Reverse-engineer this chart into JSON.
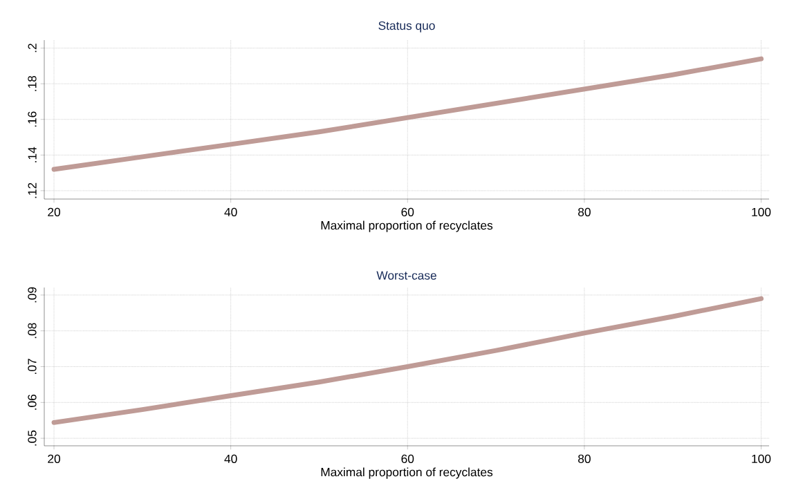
{
  "chart_data": [
    {
      "type": "line",
      "title": "Status quo",
      "xlabel": "Maximal proportion of recyclates",
      "x": [
        20,
        30,
        40,
        50,
        60,
        70,
        80,
        90,
        100
      ],
      "series": [
        {
          "color": "#bf9b96",
          "values": [
            0.132,
            0.139,
            0.146,
            0.153,
            0.161,
            0.169,
            0.177,
            0.185,
            0.194
          ]
        }
      ],
      "xlim": [
        18.9,
        100.9
      ],
      "ylim": [
        0.1153,
        0.2045
      ],
      "xticks": [
        20,
        40,
        60,
        80,
        100
      ],
      "yticks": [
        {
          "value": 0.12,
          "label": ".12"
        },
        {
          "value": 0.14,
          "label": ".14"
        },
        {
          "value": 0.16,
          "label": ".16"
        },
        {
          "value": 0.18,
          "label": ".18"
        },
        {
          "value": 0.2,
          "label": ".2"
        }
      ],
      "grid": true,
      "marker": "none",
      "line_style": "solid"
    },
    {
      "type": "line",
      "title": "Worst-case",
      "xlabel": "Maximal proportion of recyclates",
      "x": [
        20,
        30,
        40,
        50,
        60,
        70,
        80,
        90,
        100
      ],
      "series": [
        {
          "color": "#bf9b96",
          "values": [
            0.0544,
            0.058,
            0.0619,
            0.0657,
            0.07,
            0.0745,
            0.0794,
            0.084,
            0.089
          ]
        }
      ],
      "xlim": [
        18.9,
        100.9
      ],
      "ylim": [
        0.0479,
        0.0921
      ],
      "xticks": [
        20,
        40,
        60,
        80,
        100
      ],
      "yticks": [
        {
          "value": 0.05,
          "label": ".05"
        },
        {
          "value": 0.06,
          "label": ".06"
        },
        {
          "value": 0.07,
          "label": ".07"
        },
        {
          "value": 0.08,
          "label": ".08"
        },
        {
          "value": 0.09,
          "label": ".09"
        }
      ],
      "grid": true,
      "marker": "none",
      "line_style": "solid"
    }
  ]
}
